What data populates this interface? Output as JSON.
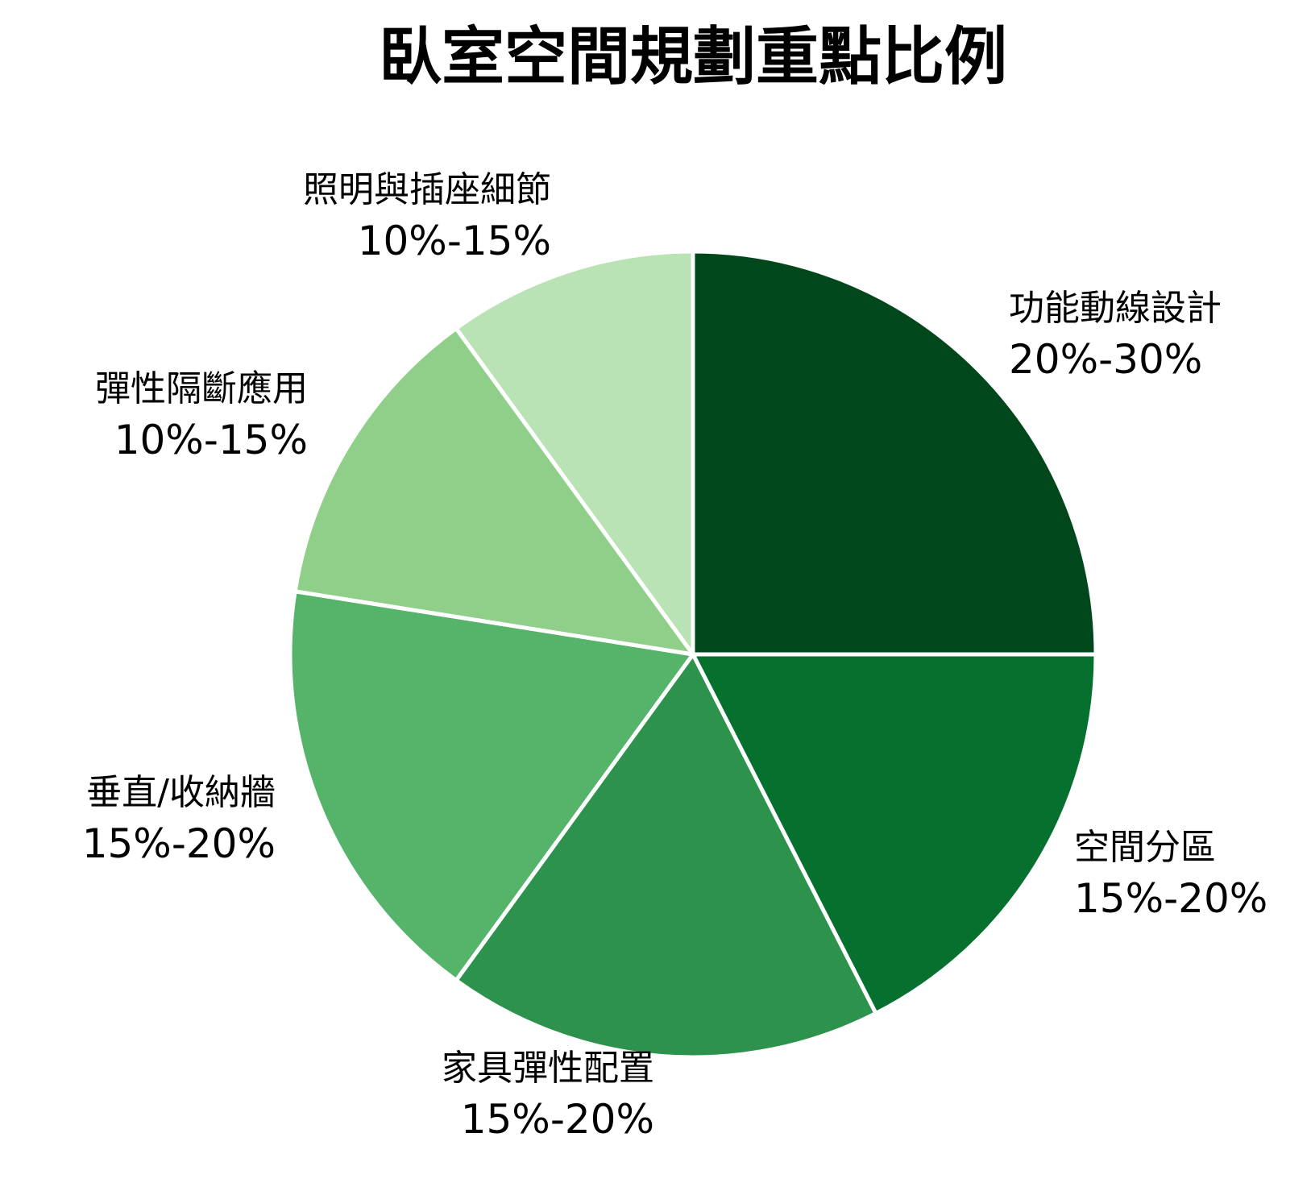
{
  "chart_data": {
    "type": "pie",
    "title": "臥室空間規劃重點比例",
    "start_angle_deg": 0,
    "direction": "clockwise",
    "slices": [
      {
        "label": "功能動線設計",
        "range_text": "20%-30%",
        "value": 25,
        "color": "#00471c"
      },
      {
        "label": "空間分區",
        "range_text": "15%-20%",
        "value": 17.5,
        "color": "#06702f"
      },
      {
        "label": "家具彈性配置",
        "range_text": "15%-20%",
        "value": 17.5,
        "color": "#2d924b"
      },
      {
        "label": "垂直/收納牆",
        "range_text": "15%-20%",
        "value": 17.5,
        "color": "#55b36a"
      },
      {
        "label": "彈性隔斷應用",
        "range_text": "10%-15%",
        "value": 12.5,
        "color": "#8fcf8a"
      },
      {
        "label": "照明與插座細節",
        "range_text": "10%-15%",
        "value": 10,
        "color": "#b9e3b4"
      }
    ]
  }
}
